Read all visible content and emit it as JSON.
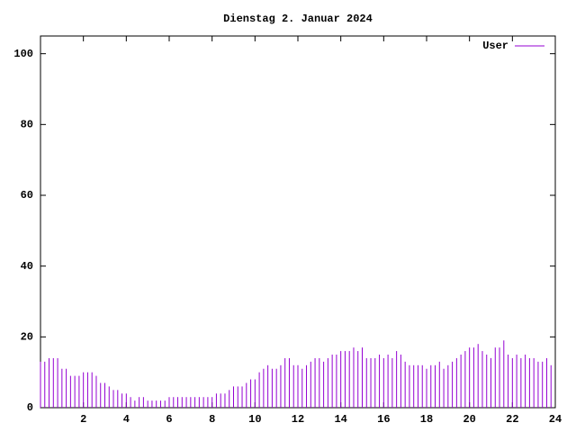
{
  "chart_data": {
    "type": "impulse",
    "title": "Dienstag 2. Januar 2024",
    "series": [
      {
        "name": "User",
        "color": "#9400d3",
        "x": [
          0,
          0.2,
          0.4,
          0.6,
          0.8,
          1,
          1.2,
          1.4,
          1.6,
          1.8,
          2,
          2.2,
          2.4,
          2.6,
          2.8,
          3,
          3.2,
          3.4,
          3.6,
          3.8,
          4,
          4.2,
          4.4,
          4.6,
          4.8,
          5,
          5.2,
          5.4,
          5.6,
          5.8,
          6,
          6.2,
          6.4,
          6.6,
          6.8,
          7,
          7.2,
          7.4,
          7.6,
          7.8,
          8,
          8.2,
          8.4,
          8.6,
          8.8,
          9,
          9.2,
          9.4,
          9.6,
          9.8,
          10,
          10.2,
          10.4,
          10.6,
          10.8,
          11,
          11.2,
          11.4,
          11.6,
          11.8,
          12,
          12.2,
          12.4,
          12.6,
          12.8,
          13,
          13.2,
          13.4,
          13.6,
          13.8,
          14,
          14.2,
          14.4,
          14.6,
          14.8,
          15,
          15.2,
          15.4,
          15.6,
          15.8,
          16,
          16.2,
          16.4,
          16.6,
          16.8,
          17,
          17.2,
          17.4,
          17.6,
          17.8,
          18,
          18.2,
          18.4,
          18.6,
          18.8,
          19,
          19.2,
          19.4,
          19.6,
          19.8,
          20,
          20.2,
          20.4,
          20.6,
          20.8,
          21,
          21.2,
          21.4,
          21.6,
          21.8,
          22,
          22.2,
          22.4,
          22.6,
          22.8,
          23,
          23.2,
          23.4,
          23.6,
          23.8
        ],
        "values": [
          13,
          13,
          14,
          14,
          14,
          11,
          11,
          9,
          9,
          9,
          10,
          10,
          10,
          9,
          7,
          7,
          6,
          5,
          5,
          4,
          4,
          3,
          2,
          3,
          3,
          2,
          2,
          2,
          2,
          2,
          3,
          3,
          3,
          3,
          3,
          3,
          3,
          3,
          3,
          3,
          3,
          4,
          4,
          4,
          5,
          6,
          6,
          6,
          7,
          8,
          8,
          10,
          11,
          12,
          11,
          11,
          12,
          14,
          14,
          12,
          12,
          11,
          12,
          13,
          14,
          14,
          13,
          14,
          15,
          15,
          16,
          16,
          16,
          17,
          16,
          17,
          14,
          14,
          14,
          15,
          14,
          15,
          14,
          16,
          15,
          13,
          12,
          12,
          12,
          12,
          11,
          12,
          12,
          13,
          11,
          12,
          13,
          14,
          15,
          16,
          17,
          17,
          18,
          16,
          15,
          14,
          17,
          17,
          19,
          15,
          14,
          15,
          14,
          15,
          14,
          14,
          13,
          13,
          14,
          12
        ]
      }
    ],
    "xlim": [
      0,
      24
    ],
    "xticks": [
      2,
      4,
      6,
      8,
      10,
      12,
      14,
      16,
      18,
      20,
      22,
      24
    ],
    "ylim": [
      0,
      105
    ],
    "yticks": [
      0,
      20,
      40,
      60,
      80,
      100
    ],
    "legend": "upper right"
  }
}
